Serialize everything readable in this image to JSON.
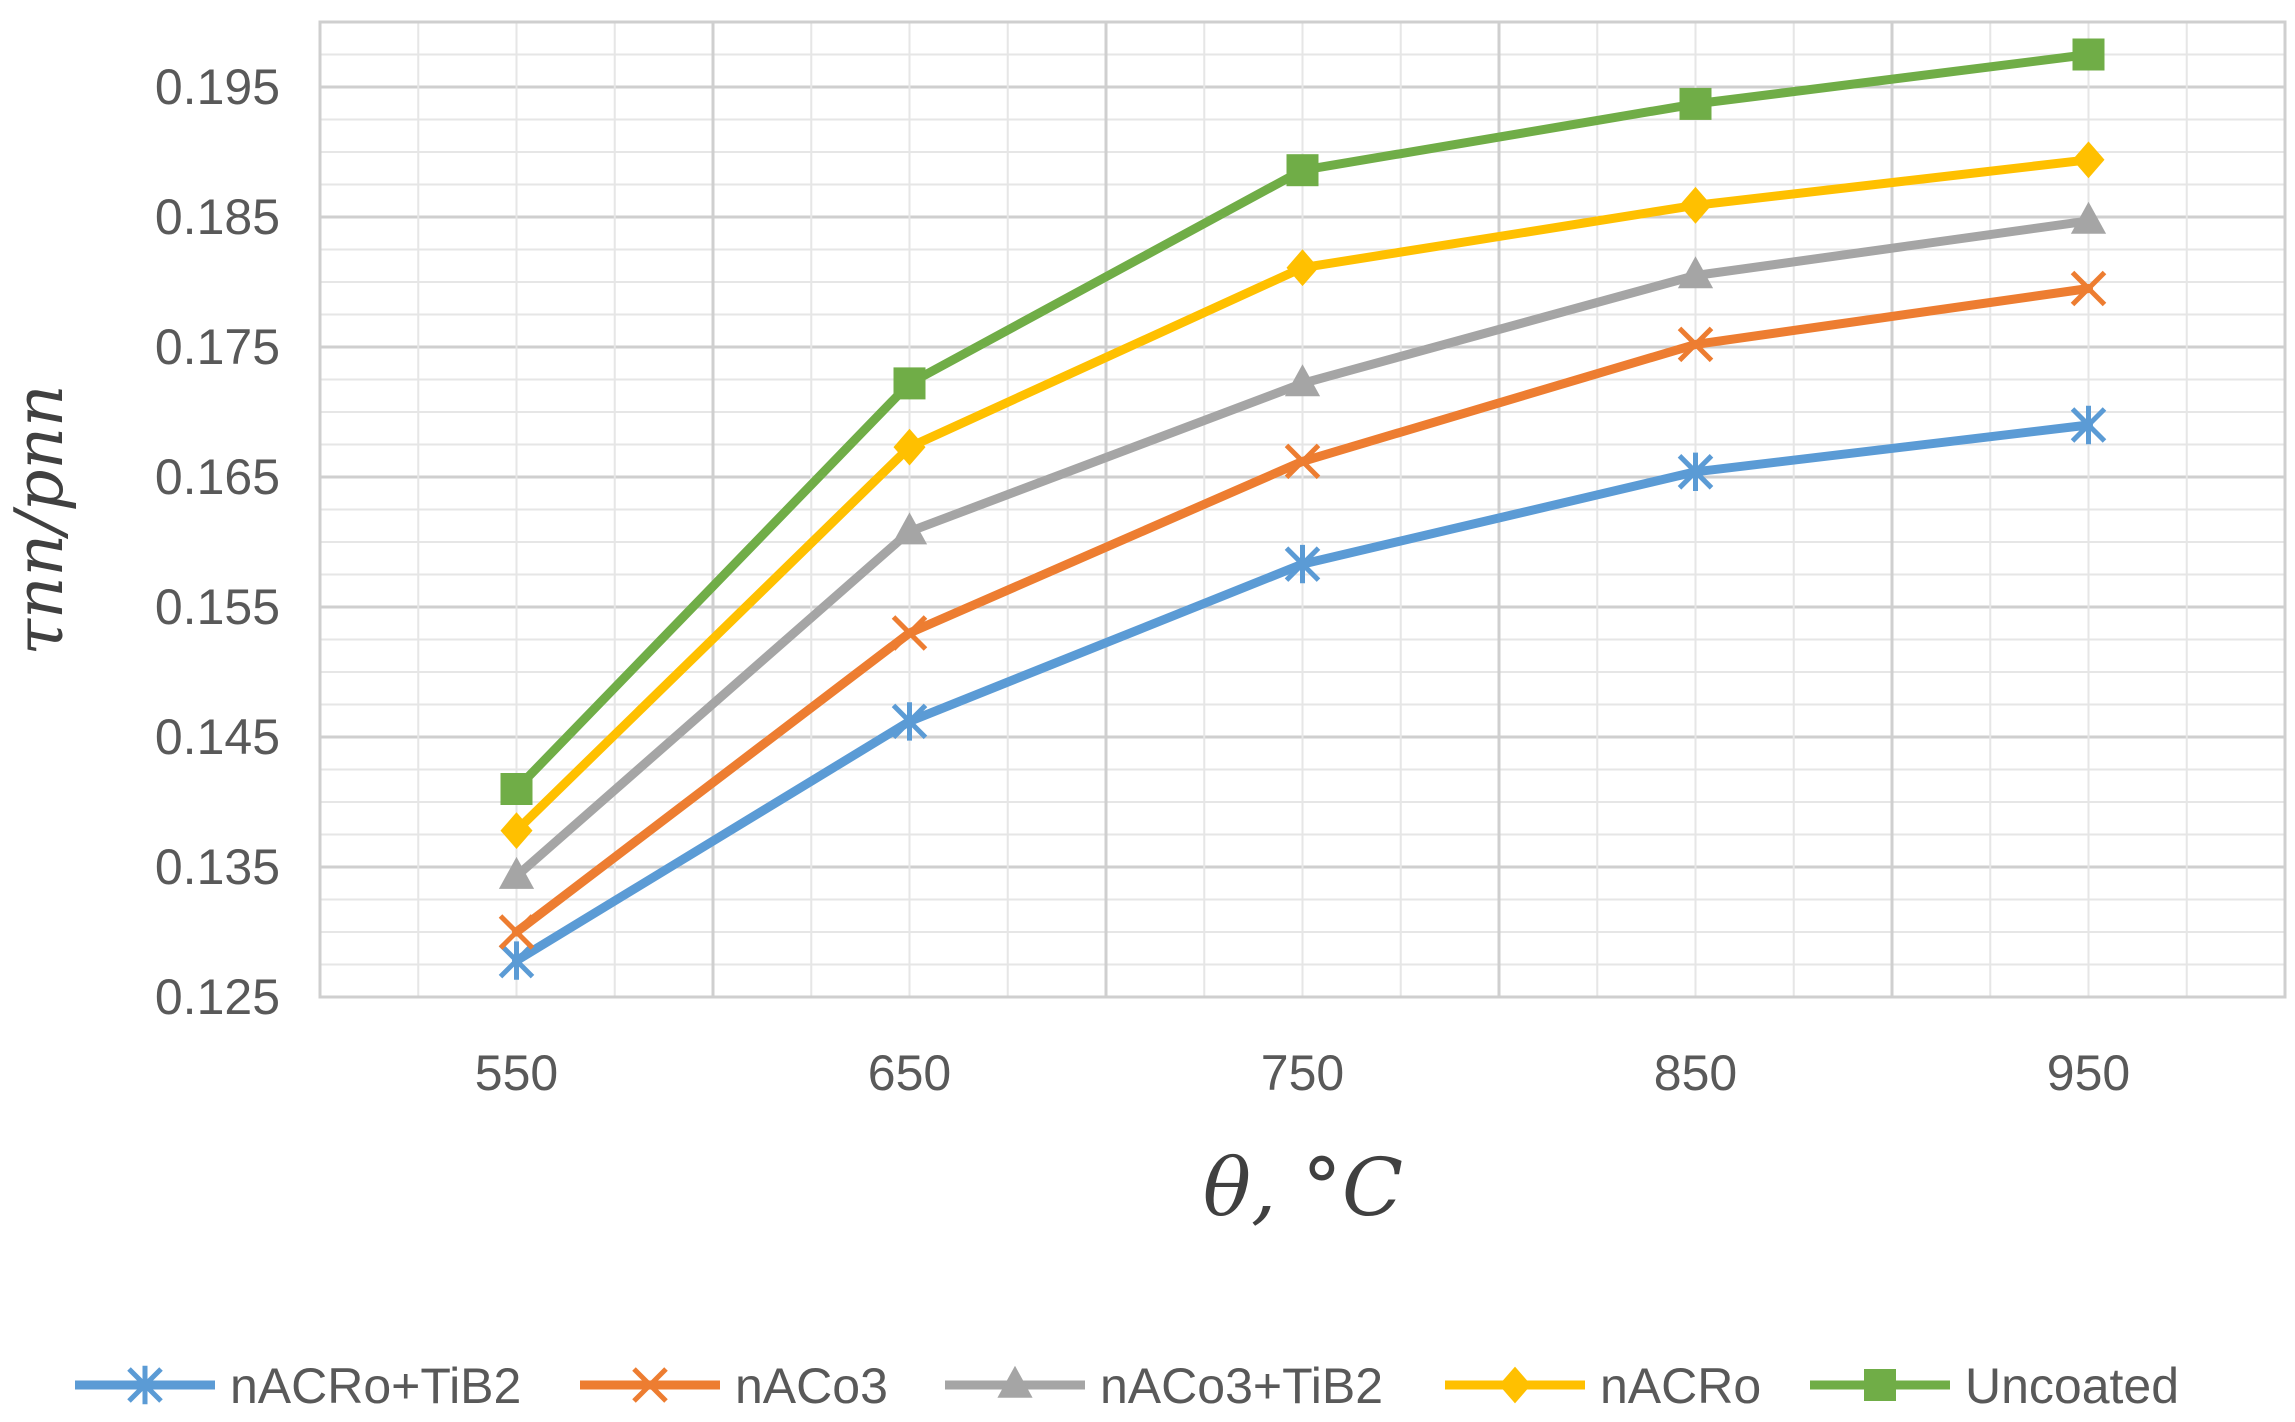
{
  "chart_data": {
    "type": "line",
    "title": "",
    "xlabel": "θ, °C",
    "ylabel": "τnn/pnn",
    "categories": [
      "550",
      "650",
      "750",
      "850",
      "950"
    ],
    "x": [
      550,
      650,
      750,
      850,
      950
    ],
    "xlim": [
      500,
      1000
    ],
    "ylim": [
      0.125,
      0.2
    ],
    "yticks": [
      "0.125",
      "0.135",
      "0.145",
      "0.155",
      "0.165",
      "0.175",
      "0.185",
      "0.195"
    ],
    "xticks": [
      "550",
      "650",
      "750",
      "850",
      "950"
    ],
    "grid": true,
    "legend_position": "bottom",
    "series": [
      {
        "name": "nACRo+TiB2",
        "color": "#5b9bd5",
        "marker": "star",
        "values": [
          0.1278,
          0.1462,
          0.1583,
          0.1654,
          0.169
        ]
      },
      {
        "name": "nACo3",
        "color": "#ed7d31",
        "marker": "x",
        "values": [
          0.13,
          0.153,
          0.1662,
          0.1752,
          0.1795
        ]
      },
      {
        "name": "nACo3+TiB2",
        "color": "#a5a5a5",
        "marker": "triangle",
        "values": [
          0.1343,
          0.1608,
          0.1722,
          0.1805,
          0.1847
        ]
      },
      {
        "name": "nACRo",
        "color": "#ffc000",
        "marker": "diamond",
        "values": [
          0.1378,
          0.1673,
          0.1811,
          0.1859,
          0.1894
        ]
      },
      {
        "name": "Uncoated",
        "color": "#70ad47",
        "marker": "square",
        "values": [
          0.141,
          0.1722,
          0.1886,
          0.1937,
          0.1975
        ]
      }
    ]
  }
}
